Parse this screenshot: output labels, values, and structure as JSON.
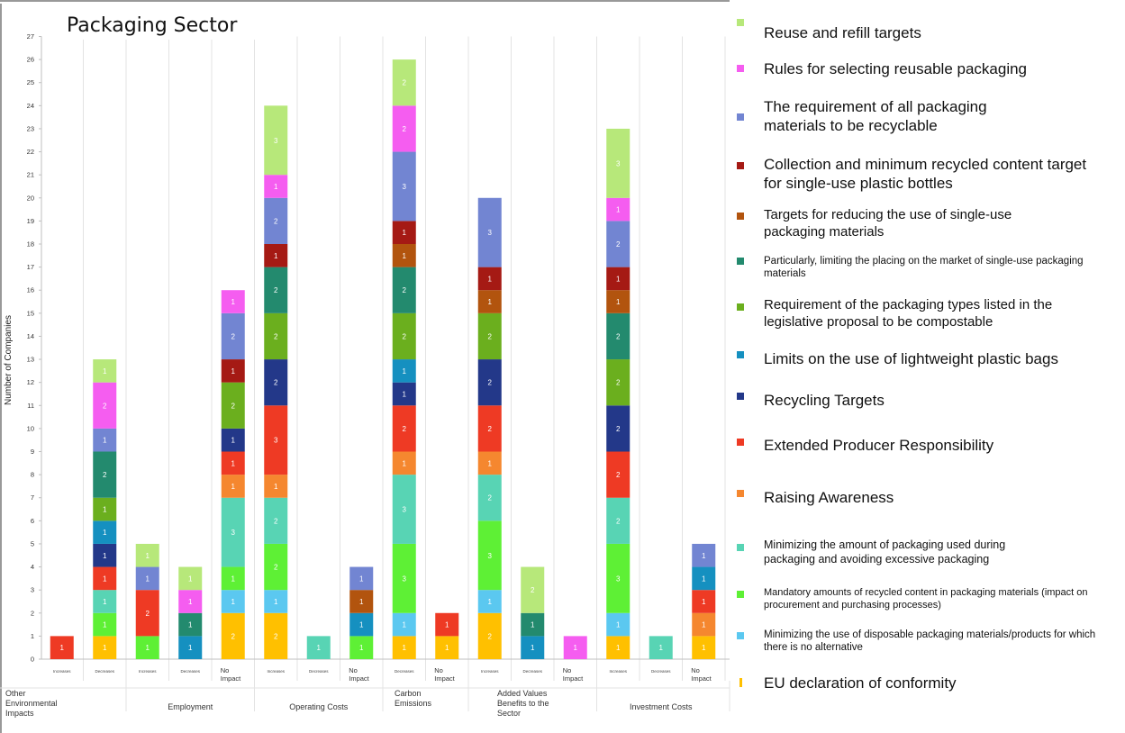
{
  "title": "Packaging Sector",
  "chart_data": {
    "type": "bar",
    "stacked": true,
    "title": "Packaging Sector",
    "ylabel": "Number of Companies",
    "ylim": [
      0,
      27
    ],
    "yticks": [
      0,
      1,
      2,
      3,
      4,
      5,
      6,
      7,
      8,
      9,
      10,
      11,
      12,
      13,
      14,
      15,
      16,
      17,
      18,
      19,
      20,
      21,
      22,
      23,
      24,
      25,
      26,
      27
    ],
    "grid": false,
    "legend_position": "right",
    "columns": [
      {
        "label": "Increases",
        "group": 0
      },
      {
        "label": "Decreases",
        "group": 0
      },
      {
        "label": "Increases",
        "group": 1
      },
      {
        "label": "Decreases",
        "group": 1
      },
      {
        "label": "No Impact",
        "group": 1
      },
      {
        "label": "Increases",
        "group": 2
      },
      {
        "label": "Decreases",
        "group": 2
      },
      {
        "label": "No Impact",
        "group": 2
      },
      {
        "label": "Decreases",
        "group": 3
      },
      {
        "label": "No Impact",
        "group": 3
      },
      {
        "label": "Increases",
        "group": 4
      },
      {
        "label": "Decreases",
        "group": 4
      },
      {
        "label": "No Impact",
        "group": 4
      },
      {
        "label": "Increases",
        "group": 5
      },
      {
        "label": "Decreases",
        "group": 5
      },
      {
        "label": "No Impact",
        "group": 5
      }
    ],
    "groups": [
      "Other Environmental Impacts",
      "Employment",
      "Operating Costs",
      "Carbon Emissions",
      "Added Values Benefits to the Sector",
      "Investment Costs"
    ],
    "series": [
      {
        "name": "EU declaration of conformity",
        "color": "#FFC000",
        "values": [
          0,
          1,
          0,
          0,
          2,
          2,
          0,
          0,
          1,
          1,
          2,
          0,
          0,
          1,
          0,
          1
        ]
      },
      {
        "name": "Minimizing the use of disposable packaging materials/products for which there is no alternative",
        "color": "#5BC8F0",
        "values": [
          0,
          0,
          0,
          0,
          1,
          1,
          0,
          0,
          1,
          0,
          1,
          0,
          0,
          1,
          0,
          0
        ]
      },
      {
        "name": "Mandatory amounts of recycled content in packaging materials (impact on procurement and purchasing processes)",
        "color": "#5EF035",
        "values": [
          0,
          1,
          1,
          0,
          1,
          2,
          0,
          1,
          3,
          0,
          3,
          0,
          0,
          3,
          0,
          0
        ]
      },
      {
        "name": "Minimizing the amount of packaging used during packaging and avoiding excessive packaging",
        "color": "#58D4B4",
        "values": [
          0,
          1,
          0,
          0,
          3,
          2,
          1,
          0,
          3,
          0,
          2,
          0,
          0,
          2,
          1,
          0
        ]
      },
      {
        "name": "Raising Awareness",
        "color": "#F5872F",
        "values": [
          0,
          0,
          0,
          0,
          1,
          1,
          0,
          0,
          1,
          0,
          1,
          0,
          0,
          0,
          0,
          1
        ]
      },
      {
        "name": "Extended Producer Responsibility",
        "color": "#EE3A24",
        "values": [
          1,
          1,
          2,
          0,
          1,
          3,
          0,
          0,
          2,
          1,
          2,
          0,
          0,
          2,
          0,
          1
        ]
      },
      {
        "name": "Recycling Targets",
        "color": "#233889",
        "values": [
          0,
          1,
          0,
          0,
          1,
          2,
          0,
          0,
          1,
          0,
          2,
          0,
          0,
          2,
          0,
          0
        ]
      },
      {
        "name": "Limits on the use of lightweight plastic bags",
        "color": "#1590C0",
        "values": [
          0,
          1,
          0,
          1,
          0,
          0,
          0,
          1,
          1,
          0,
          0,
          1,
          0,
          0,
          0,
          1
        ]
      },
      {
        "name": "Requirement of the packaging types listed in the legislative proposal to be compostable",
        "color": "#6BAF1E",
        "values": [
          0,
          1,
          0,
          0,
          2,
          2,
          0,
          0,
          2,
          0,
          2,
          0,
          0,
          2,
          0,
          0
        ]
      },
      {
        "name": "Particularly, limiting the placing on the market of single-use packaging materials",
        "color": "#238A6E",
        "values": [
          0,
          2,
          0,
          1,
          0,
          2,
          0,
          0,
          2,
          0,
          0,
          1,
          0,
          2,
          0,
          0
        ]
      },
      {
        "name": "Targets for reducing the use of single-use packaging materials",
        "color": "#B2540E",
        "values": [
          0,
          0,
          0,
          0,
          0,
          0,
          0,
          1,
          1,
          0,
          1,
          0,
          0,
          1,
          0,
          0
        ]
      },
      {
        "name": "Collection and minimum recycled content target for single-use plastic bottles",
        "color": "#A51A14",
        "values": [
          0,
          0,
          0,
          0,
          1,
          1,
          0,
          0,
          1,
          0,
          1,
          0,
          0,
          1,
          0,
          0
        ]
      },
      {
        "name": "The requirement of all packaging materials to be recyclable",
        "color": "#7285D2",
        "values": [
          0,
          1,
          1,
          0,
          2,
          2,
          0,
          1,
          3,
          0,
          3,
          0,
          0,
          2,
          0,
          1
        ]
      },
      {
        "name": "Rules for selecting reusable packaging",
        "color": "#F55DF0",
        "values": [
          0,
          2,
          0,
          1,
          1,
          1,
          0,
          0,
          2,
          0,
          0,
          0,
          1,
          1,
          0,
          0
        ]
      },
      {
        "name": "Reuse and refill targets",
        "color": "#B7E87A",
        "values": [
          0,
          1,
          1,
          1,
          0,
          3,
          0,
          0,
          2,
          0,
          0,
          2,
          0,
          3,
          0,
          0
        ]
      }
    ]
  }
}
